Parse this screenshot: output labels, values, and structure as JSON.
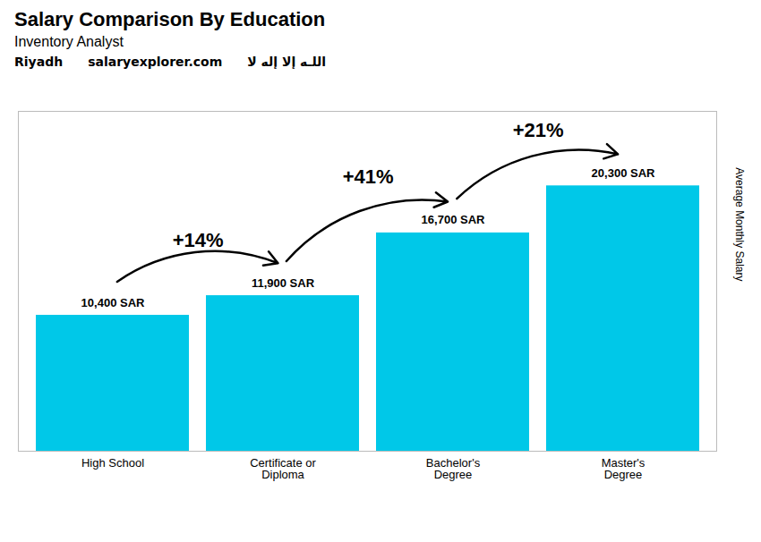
{
  "chart_data": {
    "type": "bar",
    "title": "Salary Comparison By Education",
    "subtitle": "Inventory Analyst",
    "ylabel": "Average Monthly Salary",
    "categories": [
      "High School",
      "Certificate or\nDiploma",
      "Bachelor's\nDegree",
      "Master's\nDegree"
    ],
    "values": [
      10400,
      11900,
      16700,
      20300
    ],
    "value_labels": [
      "10,400 SAR",
      "11,900 SAR",
      "16,700 SAR",
      "20,300 SAR"
    ],
    "data_labels": true,
    "color": "#00c8e8",
    "ylim": [
      0,
      26000
    ],
    "tick_labels": "x",
    "grid": false,
    "annotations": [
      {
        "text": "+14%",
        "from": "High School",
        "to": "Certificate or\nDiploma"
      },
      {
        "text": "+41%",
        "from": "Certificate or\nDiploma",
        "to": "Bachelor's\nDegree"
      },
      {
        "text": "+21%",
        "from": "Bachelor's\nDegree",
        "to": "Master's\nDegree"
      },
      {
        "text": "Riyadh"
      },
      {
        "text": "salaryexplorer.com"
      },
      {
        "text": "اللـه إلا إله لا"
      }
    ]
  }
}
